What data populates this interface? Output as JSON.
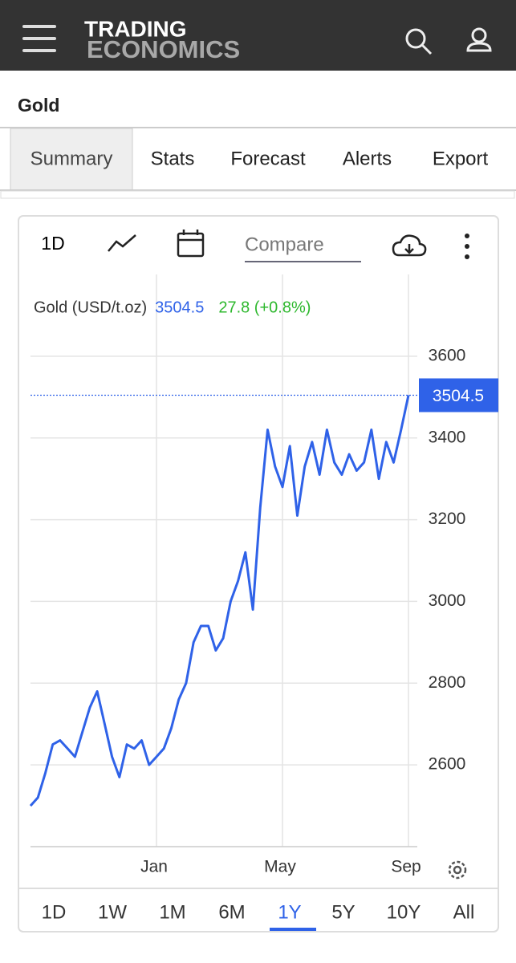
{
  "header": {
    "logo_line1": "TRADING",
    "logo_line2": "ECONOMICS"
  },
  "page_title": "Gold",
  "tabs": [
    "Summary",
    "Stats",
    "Forecast",
    "Alerts",
    "Export"
  ],
  "active_tab": "Summary",
  "toolbar": {
    "period": "1D",
    "compare": "Compare"
  },
  "legend": {
    "change": "27.8 (+0.8%)"
  },
  "ranges": [
    "1D",
    "1W",
    "1M",
    "6M",
    "1Y",
    "5Y",
    "10Y",
    "All"
  ],
  "selected_range": "1Y",
  "chart_data": {
    "type": "line",
    "categories": [
      null,
      null,
      null,
      null,
      null,
      null,
      null,
      null,
      null,
      null,
      null,
      null,
      null,
      null,
      null,
      null,
      null,
      "Jan",
      null,
      null,
      null,
      null,
      null,
      null,
      null,
      null,
      null,
      null,
      null,
      null,
      null,
      null,
      null,
      null,
      "May",
      null,
      null,
      null,
      null,
      null,
      null,
      null,
      null,
      null,
      null,
      null,
      null,
      null,
      null,
      null,
      null,
      "Sep"
    ],
    "series": [
      {
        "name": "Gold (USD/t.oz)",
        "color": "#2f62e8",
        "values": [
          2500,
          2520,
          2580,
          2650,
          2660,
          2640,
          2620,
          2680,
          2740,
          2780,
          2700,
          2620,
          2570,
          2650,
          2640,
          2660,
          2600,
          2620,
          2640,
          2690,
          2760,
          2800,
          2900,
          2940,
          2940,
          2880,
          2910,
          3000,
          3050,
          3120,
          2980,
          3230,
          3420,
          3330,
          3280,
          3380,
          3210,
          3330,
          3390,
          3310,
          3420,
          3340,
          3310,
          3360,
          3320,
          3340,
          3420,
          3300,
          3390,
          3340,
          3420,
          3504.5
        ]
      }
    ],
    "ylim": [
      2400,
      3800
    ],
    "yticks": [
      2600,
      2800,
      3000,
      3200,
      3400,
      3600
    ],
    "grid": true
  }
}
